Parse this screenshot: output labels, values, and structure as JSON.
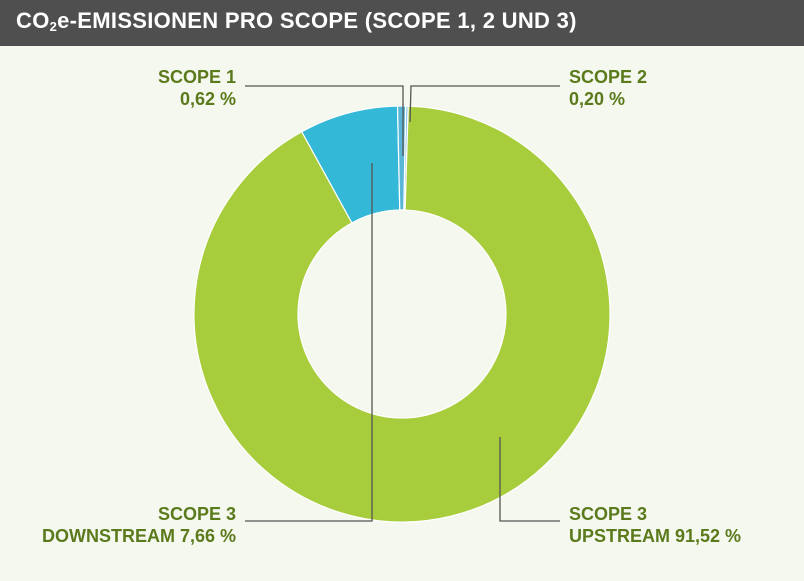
{
  "title": {
    "prefix": "CO",
    "sub": "2",
    "suffix": "e-EMISSIONEN PRO SCOPE (SCOPE 1, 2 UND 3)"
  },
  "colors": {
    "scope3_upstream": "#a8cd3c",
    "scope3_downstream": "#33b8d8",
    "scope1": "#5ab6d6",
    "scope2": "#8fc8e2",
    "label_text": "#5b7a1c",
    "leader": "#555555",
    "title_bg": "#4f4f4f",
    "background": "#f5f8ee"
  },
  "chart_data": {
    "type": "pie",
    "variant": "donut",
    "title": "CO2e-EMISSIONEN PRO SCOPE (SCOPE 1, 2 UND 3)",
    "slices": [
      {
        "key": "scope2",
        "name": "SCOPE 2",
        "value": 0.2,
        "label": "0,20 %"
      },
      {
        "key": "scope3_upstream",
        "name": "SCOPE 3 UPSTREAM",
        "value": 91.52,
        "label": "91,52 %"
      },
      {
        "key": "scope3_downstream",
        "name": "SCOPE 3 DOWNSTREAM",
        "value": 7.66,
        "label": "7,66 %"
      },
      {
        "key": "scope1",
        "name": "SCOPE 1",
        "value": 0.62,
        "label": "0,62 %"
      }
    ]
  },
  "labels": {
    "scope1": {
      "line1": "SCOPE 1",
      "line2": "0,62 %"
    },
    "scope2": {
      "line1": "SCOPE 2",
      "line2": "0,20 %"
    },
    "scope3_downstream": {
      "line1": "SCOPE 3",
      "line2": "DOWNSTREAM 7,66 %"
    },
    "scope3_upstream": {
      "line1": "SCOPE 3",
      "line2": "UPSTREAM 91,52 %"
    }
  }
}
